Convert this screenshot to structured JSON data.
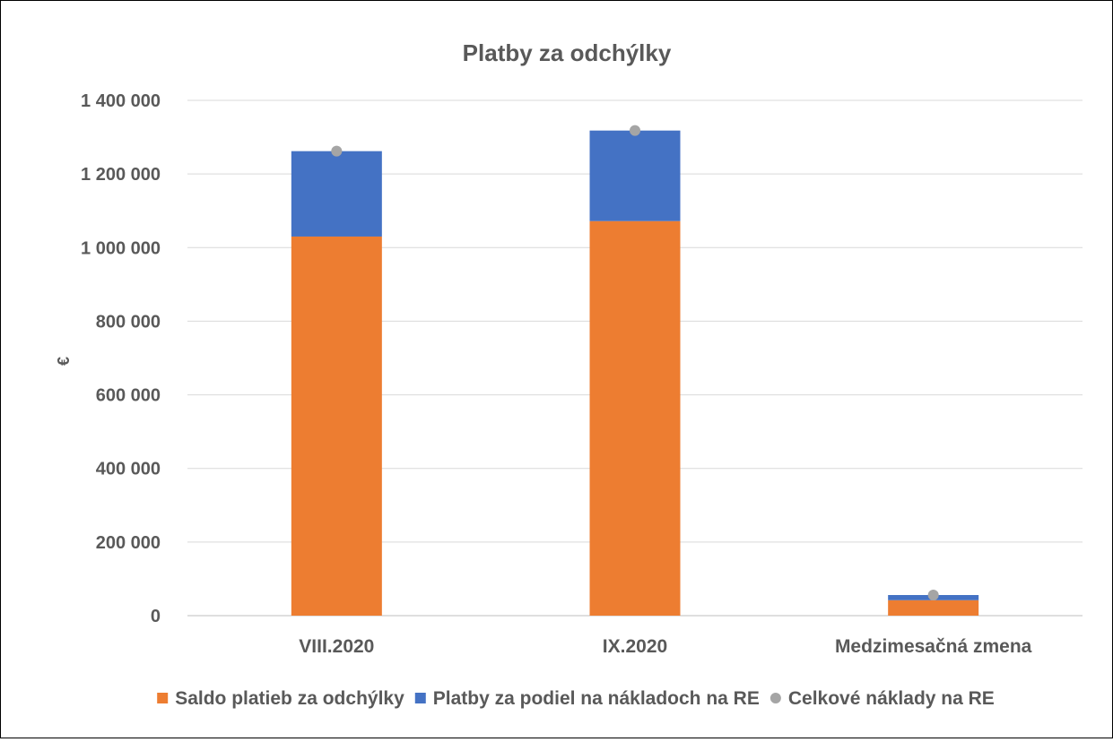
{
  "chart_data": {
    "type": "bar",
    "stacked": true,
    "title": "Platby za odchýlky",
    "xlabel": "",
    "ylabel": "€",
    "ylim": [
      0,
      1400000
    ],
    "yticks": [
      0,
      200000,
      400000,
      600000,
      800000,
      1000000,
      1200000,
      1400000
    ],
    "ytick_labels": [
      "0",
      "200 000",
      "400 000",
      "600 000",
      "800 000",
      "1 000 000",
      "1 200 000",
      "1 400 000"
    ],
    "grid": true,
    "legend_position": "bottom",
    "categories": [
      "VIII.2020",
      "IX.2020",
      "Medzimesačná zmena"
    ],
    "series": [
      {
        "name": "Saldo platieb za odchýlky",
        "kind": "bar",
        "color": "#ED7D31",
        "values": [
          1030000,
          1072000,
          42000
        ]
      },
      {
        "name": "Platby za podiel na nákladoch na RE",
        "kind": "bar",
        "color": "#4472C4",
        "values": [
          232000,
          246000,
          14000
        ]
      },
      {
        "name": "Celkové náklady na RE",
        "kind": "marker",
        "color": "#A5A5A5",
        "values": [
          1262000,
          1318000,
          56000
        ]
      }
    ]
  }
}
